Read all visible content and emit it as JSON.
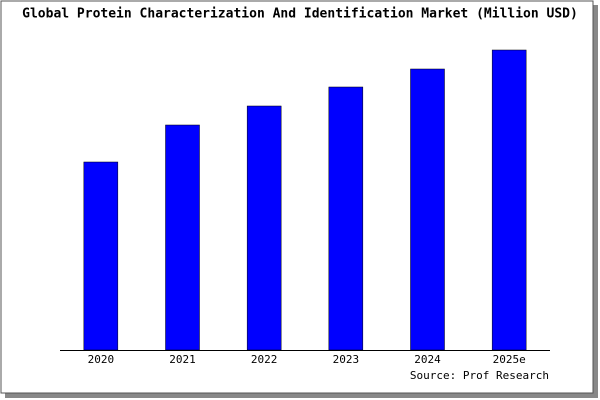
{
  "chart_data": {
    "type": "bar",
    "title": "Global Protein Characterization And Identification Market (Million USD)",
    "categories": [
      "2020",
      "2021",
      "2022",
      "2023",
      "2024",
      "2025e"
    ],
    "values": [
      188,
      225,
      244,
      263,
      281,
      300
    ],
    "color": "#0000ff",
    "ylim": [
      0,
      300
    ],
    "source": "Source: Prof Research"
  }
}
